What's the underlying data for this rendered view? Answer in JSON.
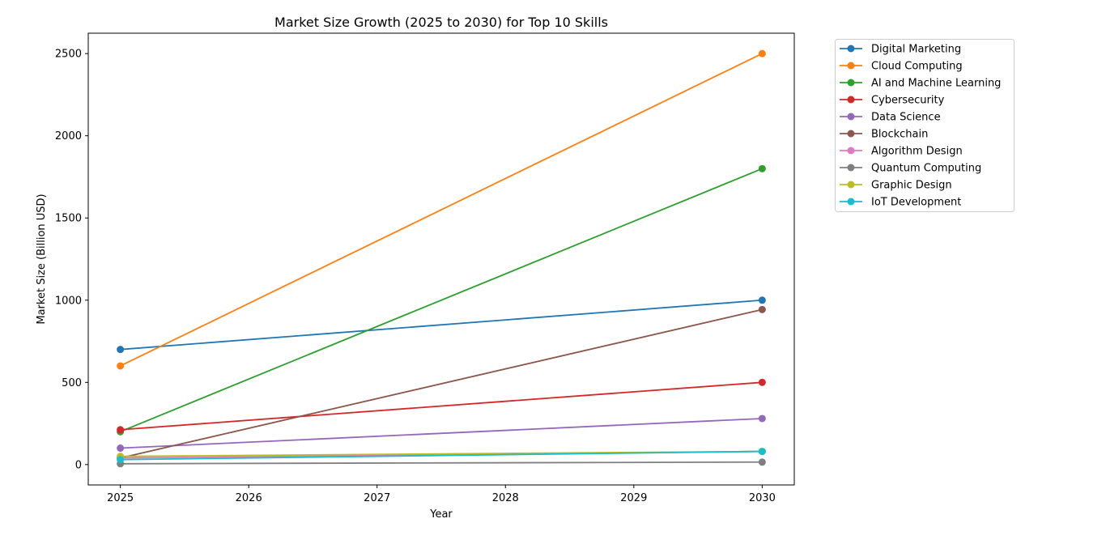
{
  "chart_data": {
    "type": "line",
    "title": "Market Size Growth (2025 to 2030) for Top 10 Skills",
    "xlabel": "Year",
    "ylabel": "Market Size (Billion USD)",
    "x": [
      2025,
      2030
    ],
    "xlim": [
      2024.75,
      2030.25
    ],
    "ylim": [
      -124,
      2624
    ],
    "xticks": [
      "2025",
      "2026",
      "2027",
      "2028",
      "2029",
      "2030"
    ],
    "yticks": [
      "0",
      "500",
      "1000",
      "1500",
      "2000",
      "2500"
    ],
    "grid": false,
    "legend_position": "outside-right",
    "series": [
      {
        "name": "Digital Marketing",
        "color": "#1f77b4",
        "values": [
          700,
          1000
        ]
      },
      {
        "name": "Cloud Computing",
        "color": "#ff7f0e",
        "values": [
          600,
          2500
        ]
      },
      {
        "name": "AI and Machine Learning",
        "color": "#2ca02c",
        "values": [
          200,
          1800
        ]
      },
      {
        "name": "Cybersecurity",
        "color": "#d62728",
        "values": [
          212,
          500
        ]
      },
      {
        "name": "Data Science",
        "color": "#9467bd",
        "values": [
          100,
          280
        ]
      },
      {
        "name": "Blockchain",
        "color": "#8c564b",
        "values": [
          40,
          943
        ]
      },
      {
        "name": "Algorithm Design",
        "color": "#e377c2",
        "values": [
          40,
          80
        ]
      },
      {
        "name": "Quantum Computing",
        "color": "#7f7f7f",
        "values": [
          5,
          15
        ]
      },
      {
        "name": "Graphic Design",
        "color": "#bcbd22",
        "values": [
          50,
          80
        ]
      },
      {
        "name": "IoT Development",
        "color": "#17becf",
        "values": [
          30,
          80
        ]
      }
    ]
  }
}
